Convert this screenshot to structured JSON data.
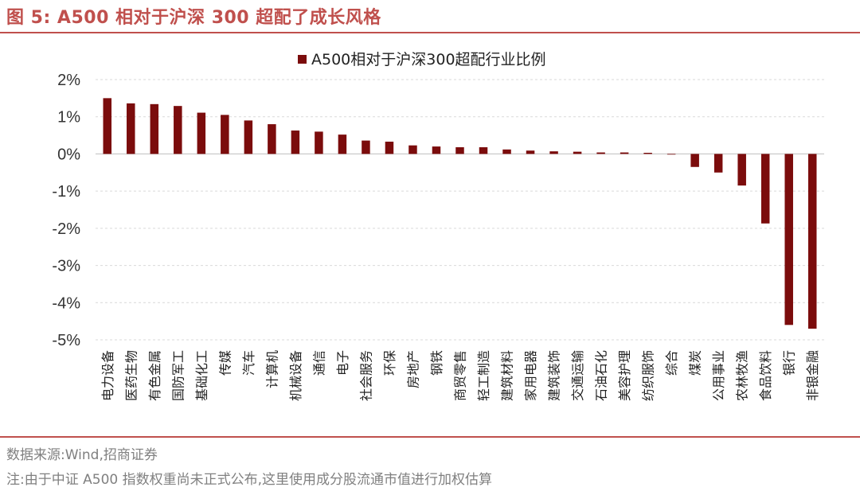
{
  "figure": {
    "title": "图 5:  A500 相对于沪深 300 超配了成长风格",
    "source": "数据来源:Wind,招商证券",
    "footnote": "注:由于中证 A500 指数权重尚未正式公布,这里使用成分股流通市值进行加权估算"
  },
  "colors": {
    "bar": "#7b0c0c",
    "accent": "#c0504d",
    "grid": "#d9d9d9"
  },
  "chart_data": {
    "type": "bar",
    "legend": "A500相对于沪深300超配行业比例",
    "legend_position": "top-center",
    "grid": true,
    "ylim": [
      -5,
      2
    ],
    "yticks": [
      2,
      1,
      0,
      -1,
      -2,
      -3,
      -4,
      -5
    ],
    "ytick_labels": [
      "2%",
      "1%",
      "0%",
      "-1%",
      "-2%",
      "-3%",
      "-4%",
      "-5%"
    ],
    "categories": [
      "电力设备",
      "医药生物",
      "有色金属",
      "国防军工",
      "基础化工",
      "传媒",
      "汽车",
      "计算机",
      "机械设备",
      "通信",
      "电子",
      "社会服务",
      "环保",
      "房地产",
      "钢铁",
      "商贸零售",
      "轻工制造",
      "建筑材料",
      "家用电器",
      "建筑装饰",
      "交通运输",
      "石油石化",
      "美容护理",
      "纺织服饰",
      "综合",
      "煤炭",
      "公用事业",
      "农林牧渔",
      "食品饮料",
      "银行",
      "非银金融"
    ],
    "series": [
      {
        "name": "A500相对于沪深300超配行业比例",
        "values": [
          1.5,
          1.36,
          1.34,
          1.29,
          1.11,
          1.05,
          0.9,
          0.8,
          0.63,
          0.6,
          0.52,
          0.36,
          0.33,
          0.23,
          0.2,
          0.18,
          0.18,
          0.12,
          0.09,
          0.07,
          0.06,
          0.04,
          0.04,
          0.03,
          0.0,
          -0.35,
          -0.5,
          -0.85,
          -1.87,
          -4.6,
          -4.7
        ]
      }
    ]
  }
}
